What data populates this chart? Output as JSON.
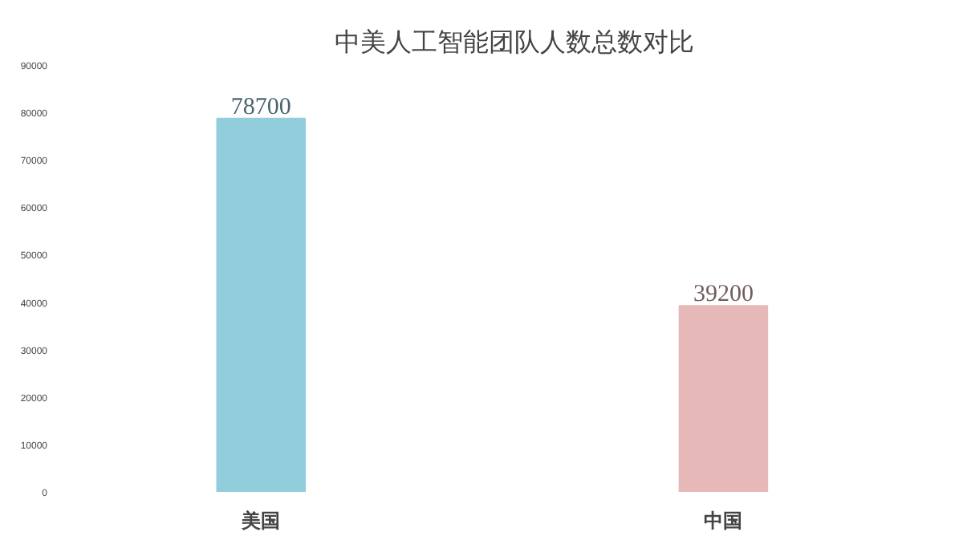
{
  "chart_data": {
    "type": "bar",
    "title": "中美人工智能团队人数总数对比",
    "categories": [
      "美国",
      "中国"
    ],
    "values": [
      78700,
      39200
    ],
    "colors": [
      "#92cddc",
      "#e6b9b8"
    ],
    "ylim": [
      0,
      90000
    ],
    "yticks": [
      0,
      10000,
      20000,
      30000,
      40000,
      50000,
      60000,
      70000,
      80000,
      90000
    ],
    "data_labels": true,
    "grid": false
  }
}
